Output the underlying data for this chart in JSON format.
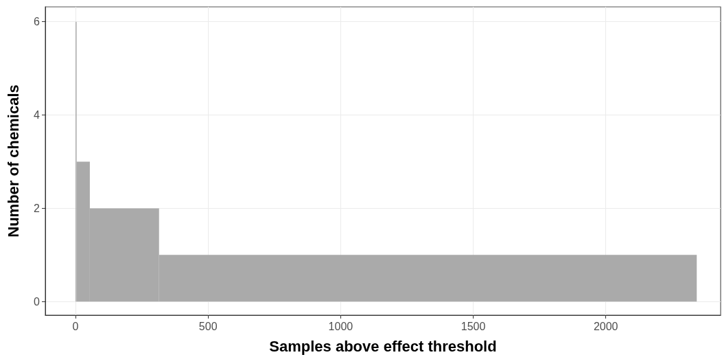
{
  "chart_data": {
    "type": "histogram",
    "xlabel": "Samples above effect threshold",
    "ylabel": "Number of chemicals",
    "bins": [
      0,
      4,
      54,
      315,
      2343
    ],
    "values": [
      6,
      3,
      2,
      1
    ],
    "color": "#aaaaaa",
    "xlim": [
      -114,
      2433
    ],
    "xticks": [
      0,
      500,
      1000,
      1500,
      2000
    ],
    "ylim": [
      -0.29,
      6.32
    ],
    "yticks": [
      0,
      2,
      4,
      6
    ],
    "grid": true
  }
}
